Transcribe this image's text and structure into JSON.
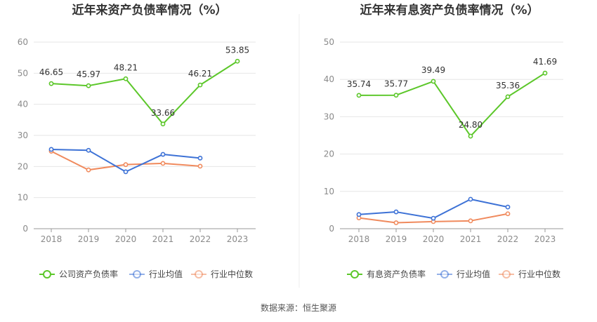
{
  "source_label": "数据来源：恒生聚源",
  "chart_data": [
    {
      "type": "line",
      "title": "近年来资产负债率情况（%）",
      "categories": [
        "2018",
        "2019",
        "2020",
        "2021",
        "2022",
        "2023"
      ],
      "ylim": [
        0,
        60
      ],
      "yticks": [
        "0",
        "10",
        "20",
        "30",
        "40",
        "50",
        "60"
      ],
      "grid": true,
      "legend_position": "bottom",
      "series": [
        {
          "name": "公司资产负债率",
          "color": "#5cc72a",
          "values": [
            46.65,
            45.97,
            48.21,
            33.66,
            46.21,
            53.85
          ],
          "labels": [
            "46.65",
            "45.97",
            "48.21",
            "33.66",
            "46.21",
            "53.85"
          ]
        },
        {
          "name": "行业均值",
          "color": "#3d72d6",
          "values": [
            25.5,
            25.2,
            18.3,
            23.9,
            22.7,
            null
          ]
        },
        {
          "name": "行业中位数",
          "color": "#f08a5d",
          "values": [
            24.9,
            18.9,
            20.6,
            21.0,
            20.1,
            null
          ]
        }
      ]
    },
    {
      "type": "line",
      "title": "近年来有息资产负债率情况（%）",
      "categories": [
        "2018",
        "2019",
        "2020",
        "2021",
        "2022",
        "2023"
      ],
      "ylim": [
        0,
        50
      ],
      "yticks": [
        "0",
        "10",
        "20",
        "30",
        "40",
        "50"
      ],
      "grid": true,
      "legend_position": "bottom",
      "series": [
        {
          "name": "有息资产负债率",
          "color": "#5cc72a",
          "values": [
            35.74,
            35.77,
            39.49,
            24.8,
            35.36,
            41.69
          ],
          "labels": [
            "35.74",
            "35.77",
            "39.49",
            "24.80",
            "35.36",
            "41.69"
          ]
        },
        {
          "name": "行业均值",
          "color": "#3d72d6",
          "values": [
            3.8,
            4.5,
            2.8,
            7.9,
            5.8,
            null
          ]
        },
        {
          "name": "行业中位数",
          "color": "#f08a5d",
          "values": [
            2.9,
            1.6,
            1.9,
            2.1,
            4.0,
            null
          ]
        }
      ]
    }
  ]
}
